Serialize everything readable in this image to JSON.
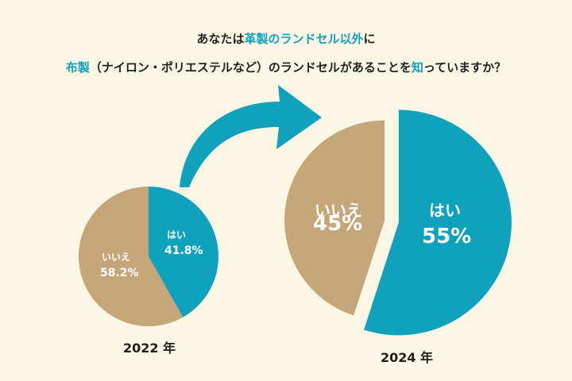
{
  "title": {
    "line1": [
      {
        "text": "あなたは",
        "hl": false
      },
      {
        "text": "革製のランドセル以外",
        "hl": true
      },
      {
        "text": "に",
        "hl": false
      }
    ],
    "line2": [
      {
        "text": "布製",
        "hl": true
      },
      {
        "text": "（ナイロン・ポリエステルなど）のランドセルがあることを",
        "hl": false
      },
      {
        "text": "知",
        "hl": true
      },
      {
        "text": "っていますか",
        "hl": false
      },
      {
        "text": "？",
        "hl": false
      }
    ]
  },
  "colors": {
    "yes": "#10a2bd",
    "no": "#c4a679",
    "accent": "#10a2bd",
    "arrow": "#10a2bd"
  },
  "chart_data": [
    {
      "type": "pie",
      "title": "2022 年",
      "slices": [
        {
          "label": "はい",
          "value": 41.8,
          "display": "41.8%"
        },
        {
          "label": "いいえ",
          "value": 58.2,
          "display": "58.2%"
        }
      ]
    },
    {
      "type": "pie",
      "title": "2024 年",
      "slices": [
        {
          "label": "はい",
          "value": 55,
          "display": "55%"
        },
        {
          "label": "いいえ",
          "value": 45,
          "display": "45%"
        }
      ]
    }
  ]
}
